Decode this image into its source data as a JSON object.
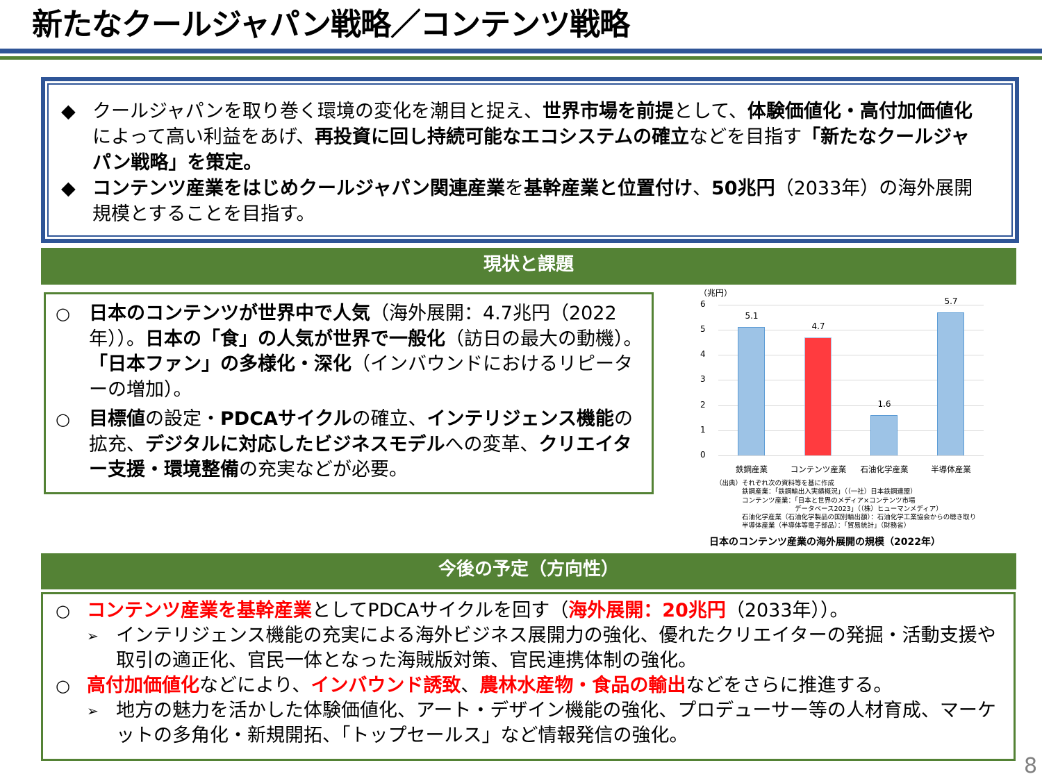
{
  "header": {
    "title": "新たなクールジャパン戦略／コンテンツ戦略"
  },
  "summary": {
    "bullet_icon": "◆",
    "items": [
      {
        "segments": [
          {
            "t": "クールジャパンを取り巻く環境の変化を潮目と捉え、",
            "b": false
          },
          {
            "t": "世界市場を前提",
            "b": true
          },
          {
            "t": "として、",
            "b": false
          },
          {
            "t": "体験価値化・高付加価値化",
            "b": true
          },
          {
            "t": "によって高い利益をあげ、",
            "b": false
          },
          {
            "t": "再投資に回し持続可能なエコシステムの確立",
            "b": true
          },
          {
            "t": "などを目指す",
            "b": false
          },
          {
            "t": "「新たなクールジャパン戦略」を策定。",
            "b": true
          }
        ]
      },
      {
        "segments": [
          {
            "t": "コンテンツ産業をはじめクールジャパン関連産業",
            "b": true
          },
          {
            "t": "を",
            "b": false
          },
          {
            "t": "基幹産業と位置付け",
            "b": true
          },
          {
            "t": "、",
            "b": false
          },
          {
            "t": "50兆円",
            "b": true
          },
          {
            "t": "（2033年）の海外展開規模とすることを目指す。",
            "b": false
          }
        ]
      }
    ]
  },
  "section_current": {
    "header": "現状と課題",
    "bullet_icon": "○",
    "items": [
      {
        "segments": [
          {
            "t": "日本のコンテンツが世界中で人気",
            "b": true
          },
          {
            "t": "（海外展開：4.7兆円（2022年））。",
            "b": false
          },
          {
            "t": "日本の「食」の人気が世界で一般化",
            "b": true
          },
          {
            "t": "（訪日の最大の動機）。",
            "b": false
          },
          {
            "t": "「日本ファン」の多様化・深化",
            "b": true
          },
          {
            "t": "（インバウンドにおけるリピーターの増加）。",
            "b": false
          }
        ]
      },
      {
        "segments": [
          {
            "t": "目標値",
            "b": true
          },
          {
            "t": "の設定・",
            "b": false
          },
          {
            "t": "PDCAサイクル",
            "b": true
          },
          {
            "t": "の確立、",
            "b": false
          },
          {
            "t": "インテリジェンス機能",
            "b": true
          },
          {
            "t": "の拡充、",
            "b": false
          },
          {
            "t": "デジタルに対応したビジネスモデル",
            "b": true
          },
          {
            "t": "への変革、",
            "b": false
          },
          {
            "t": "クリエイター支援・環境整備",
            "b": true
          },
          {
            "t": "の充実などが必要。",
            "b": false
          }
        ]
      }
    ]
  },
  "chart_data": {
    "type": "bar",
    "title": "日本のコンテンツ産業の海外展開の規模（2022年）",
    "ylabel": "（兆円）",
    "xlabel": "",
    "categories": [
      "鉄鋼産業",
      "コンテンツ産業",
      "石油化学産業",
      "半導体産業"
    ],
    "values": [
      5.1,
      4.7,
      1.6,
      5.7
    ],
    "value_labels": [
      "5.1",
      "4.7",
      "1.6",
      "5.7"
    ],
    "bar_colors": [
      "#9dc3e6",
      "#ff3b3f",
      "#9dc3e6",
      "#9dc3e6"
    ],
    "highlight_index": 1,
    "ylim": [
      0,
      6
    ],
    "yticks": [
      "0",
      "1",
      "2",
      "3",
      "4",
      "5",
      "6"
    ],
    "grid": true,
    "legend": null
  },
  "chart_source": {
    "lines": [
      "（出典）それぞれ次の資料等を基に作成",
      "　　　　鉄鋼産業：「鉄鋼輸出入実績概況」（（一社）日本鉄鋼連盟）",
      "　　　　コンテンツ産業：「日本と世界のメディア×コンテンツ市場",
      "　　　　　　　　　　　　データベース2023」（（株）ヒューマンメディア）",
      "　　　　石油化学産業（石油化学製品の国別輸出額）：石油化学工業協会からの聴き取り",
      "　　　　半導体産業（半導体等電子部品）：「貿易統計」（財務省）"
    ]
  },
  "section_plan": {
    "header": "今後の予定（方向性）",
    "bullet_icon": "○",
    "sub_icon": "➢",
    "items": [
      {
        "segments": [
          {
            "t": "コンテンツ産業を基幹産業",
            "r": true
          },
          {
            "t": "としてPDCAサイクルを回す（",
            "r": false
          },
          {
            "t": "海外展開：20兆円",
            "r": true
          },
          {
            "t": "（2033年））。",
            "r": false
          }
        ],
        "sub": "インテリジェンス機能の充実による海外ビジネス展開力の強化、優れたクリエイターの発掘・活動支援や取引の適正化、官民一体となった海賊版対策、官民連携体制の強化。"
      },
      {
        "segments": [
          {
            "t": "高付加価値化",
            "r": true
          },
          {
            "t": "などにより、",
            "r": false
          },
          {
            "t": "インバウンド誘致",
            "r": true
          },
          {
            "t": "、",
            "r": false
          },
          {
            "t": "農林水産物・食品の輸出",
            "r": true
          },
          {
            "t": "などをさらに推進する。",
            "r": false
          }
        ],
        "sub": "地方の魅力を活かした体験価値化、アート・デザイン機能の強化、プロデューサー等の人材育成、マーケットの多角化・新規開拓、「トップセールス」など情報発信の強化。"
      }
    ]
  },
  "footer": {
    "page_number": "8"
  },
  "colors": {
    "blue": "#2f5597",
    "green": "#548235",
    "highlight_red": "#ff0000",
    "bar_blue": "#9dc3e6",
    "bar_red": "#ff3b3f"
  }
}
